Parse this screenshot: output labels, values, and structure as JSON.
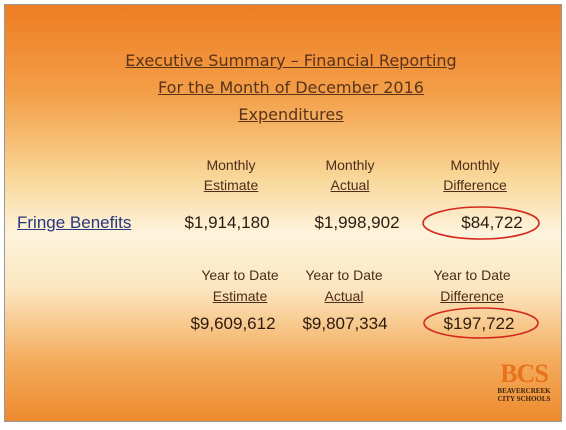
{
  "title": [
    "Executive Summary – Financial Reporting",
    "For the Month of December 2016",
    "Expenditures"
  ],
  "monthly": {
    "headers": [
      [
        "Monthly",
        "Estimate"
      ],
      [
        "Monthly",
        "Actual"
      ],
      [
        "Monthly",
        "Difference"
      ]
    ],
    "row_label": "Fringe Benefits",
    "values": [
      "$1,914,180",
      "$1,998,902",
      "$84,722"
    ]
  },
  "year_to_date": {
    "headers": [
      [
        "Year to Date",
        "Estimate"
      ],
      [
        "Year to Date",
        "Actual"
      ],
      [
        "Year to Date",
        "Difference"
      ]
    ],
    "values": [
      "$9,609,612",
      "$9,807,334",
      "$197,722"
    ]
  },
  "logo": {
    "mark": "BCS",
    "name": [
      "BEAVERCREEK",
      "CITY SCHOOLS"
    ]
  }
}
